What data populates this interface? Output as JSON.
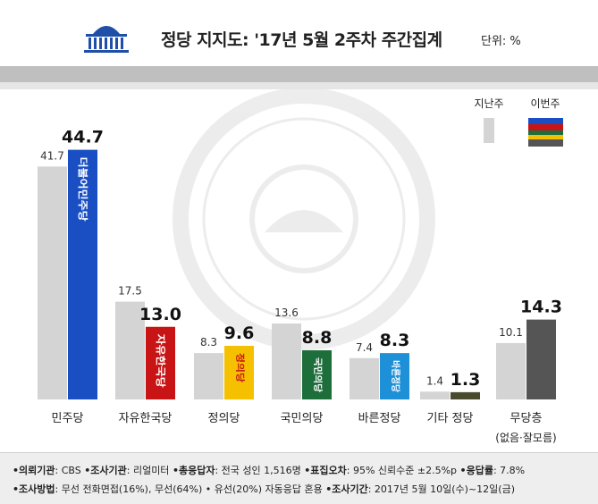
{
  "header": {
    "title": "정당 지지도: '17년 5월 2주차 주간집계",
    "unit": "단위: %"
  },
  "legend": {
    "previous_label": "지난주",
    "current_label": "이번주"
  },
  "chart_data": {
    "type": "bar",
    "categories": [
      "민주당",
      "자유한국당",
      "정의당",
      "국민의당",
      "바른정당",
      "기타 정당",
      "무당층"
    ],
    "category_sublabels": [
      "",
      "",
      "",
      "",
      "",
      "",
      "(없음·잘모름)"
    ],
    "series": [
      {
        "name": "지난주",
        "values": [
          41.7,
          17.5,
          8.3,
          13.6,
          7.4,
          1.4,
          10.1
        ]
      },
      {
        "name": "이번주",
        "values": [
          44.7,
          13.0,
          9.6,
          8.8,
          8.3,
          1.3,
          14.3
        ]
      }
    ],
    "value_labels_previous": [
      "41.7",
      "17.5",
      "8.3",
      "13.6",
      "7.4",
      "1.4",
      "10.1"
    ],
    "value_labels_current": [
      "44.7",
      "13.0",
      "9.6",
      "8.8",
      "8.3",
      "1.3",
      "14.3"
    ],
    "current_colors": [
      "#1a4fc4",
      "#c81414",
      "#f5c000",
      "#1e6e3c",
      "#1e90d8",
      "#4a4a2e",
      "#555555"
    ],
    "previous_color": "#d4d4d4",
    "party_logos": [
      "더불어민주당",
      "자유한국당",
      "정의당",
      "국민의당",
      "바른정당",
      "",
      ""
    ],
    "ylim": [
      0,
      50
    ],
    "grid": false
  },
  "footer": {
    "line1": [
      {
        "label": "•의뢰기관",
        "value": ": CBS"
      },
      {
        "label": "•조사기관",
        "value": ": 리얼미터"
      },
      {
        "label": "•총응답자",
        "value": ": 전국 성인 1,516명"
      },
      {
        "label": "•표집오차",
        "value": ": 95% 신뢰수준 ±2.5%p"
      },
      {
        "label": "•응답률",
        "value": ": 7.8%"
      }
    ],
    "line2": [
      {
        "label": "•조사방법",
        "value": ": 무선 전화면접(16%), 무선(64%) • 유선(20%) 자동응답 혼용"
      },
      {
        "label": "•조사기간",
        "value": ": 2017년 5월 10일(수)~12일(금)"
      }
    ]
  }
}
